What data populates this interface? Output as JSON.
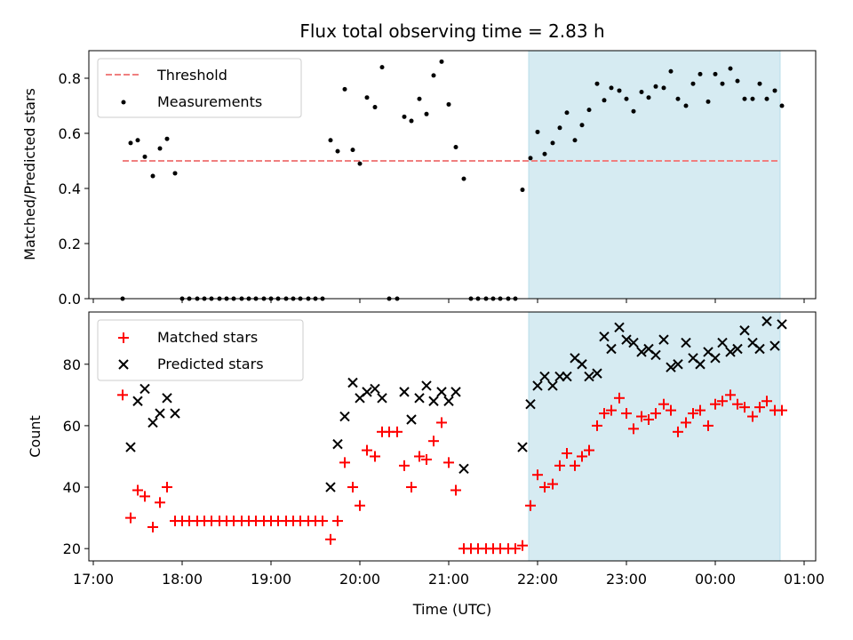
{
  "chart_data": [
    {
      "type": "scatter",
      "title": "Flux total observing time = 2.83 h",
      "xlabel": "",
      "ylabel": "Matched/Predicted stars",
      "x_unit": "hours since 17:00 UTC",
      "xlim": [
        16.95,
        25.13
      ],
      "ylim": [
        0,
        0.9
      ],
      "y_ticks": [
        0.0,
        0.2,
        0.4,
        0.6,
        0.8
      ],
      "y_tick_labels": [
        "0.0",
        "0.2",
        "0.4",
        "0.6",
        "0.8"
      ],
      "highlight_span": [
        21.9,
        24.73
      ],
      "highlight_color": "#add8e6",
      "threshold": {
        "name": "Threshold",
        "value": 0.5,
        "x_range": [
          17.33,
          24.73
        ],
        "color": "#f08080"
      },
      "legend": {
        "placement": "top-left",
        "entries": [
          "Threshold",
          "Measurements"
        ]
      },
      "series": [
        {
          "name": "Measurements",
          "marker": "dot",
          "color": "#000000",
          "points": [
            [
              17.33,
              0.0
            ],
            [
              17.42,
              0.565
            ],
            [
              17.5,
              0.575
            ],
            [
              17.58,
              0.515
            ],
            [
              17.67,
              0.445
            ],
            [
              17.75,
              0.545
            ],
            [
              17.83,
              0.58
            ],
            [
              17.92,
              0.455
            ],
            [
              18.0,
              0.0
            ],
            [
              18.08,
              0.0
            ],
            [
              18.17,
              0.0
            ],
            [
              18.25,
              0.0
            ],
            [
              18.33,
              0.0
            ],
            [
              18.42,
              0.0
            ],
            [
              18.5,
              0.0
            ],
            [
              18.58,
              0.0
            ],
            [
              18.67,
              0.0
            ],
            [
              18.75,
              0.0
            ],
            [
              18.83,
              0.0
            ],
            [
              18.92,
              0.0
            ],
            [
              19.0,
              0.0
            ],
            [
              19.08,
              0.0
            ],
            [
              19.17,
              0.0
            ],
            [
              19.25,
              0.0
            ],
            [
              19.33,
              0.0
            ],
            [
              19.42,
              0.0
            ],
            [
              19.5,
              0.0
            ],
            [
              19.58,
              0.0
            ],
            [
              19.67,
              0.575
            ],
            [
              19.75,
              0.535
            ],
            [
              19.83,
              0.76
            ],
            [
              19.92,
              0.54
            ],
            [
              20.0,
              0.49
            ],
            [
              20.08,
              0.73
            ],
            [
              20.17,
              0.695
            ],
            [
              20.25,
              0.84
            ],
            [
              20.33,
              0.0
            ],
            [
              20.42,
              0.0
            ],
            [
              20.5,
              0.66
            ],
            [
              20.58,
              0.645
            ],
            [
              20.67,
              0.725
            ],
            [
              20.75,
              0.67
            ],
            [
              20.83,
              0.81
            ],
            [
              20.92,
              0.86
            ],
            [
              21.0,
              0.705
            ],
            [
              21.08,
              0.55
            ],
            [
              21.17,
              0.435
            ],
            [
              21.25,
              0.0
            ],
            [
              21.33,
              0.0
            ],
            [
              21.42,
              0.0
            ],
            [
              21.5,
              0.0
            ],
            [
              21.58,
              0.0
            ],
            [
              21.67,
              0.0
            ],
            [
              21.75,
              0.0
            ],
            [
              21.83,
              0.395
            ],
            [
              21.92,
              0.51
            ],
            [
              22.0,
              0.605
            ],
            [
              22.08,
              0.525
            ],
            [
              22.17,
              0.565
            ],
            [
              22.25,
              0.62
            ],
            [
              22.33,
              0.675
            ],
            [
              22.42,
              0.575
            ],
            [
              22.5,
              0.63
            ],
            [
              22.58,
              0.685
            ],
            [
              22.67,
              0.78
            ],
            [
              22.75,
              0.72
            ],
            [
              22.83,
              0.765
            ],
            [
              22.92,
              0.755
            ],
            [
              23.0,
              0.725
            ],
            [
              23.08,
              0.68
            ],
            [
              23.17,
              0.75
            ],
            [
              23.25,
              0.73
            ],
            [
              23.33,
              0.77
            ],
            [
              23.42,
              0.765
            ],
            [
              23.5,
              0.825
            ],
            [
              23.58,
              0.725
            ],
            [
              23.67,
              0.7
            ],
            [
              23.75,
              0.78
            ],
            [
              23.83,
              0.815
            ],
            [
              23.92,
              0.715
            ],
            [
              24.0,
              0.815
            ],
            [
              24.08,
              0.78
            ],
            [
              24.17,
              0.835
            ],
            [
              24.25,
              0.79
            ],
            [
              24.33,
              0.725
            ],
            [
              24.42,
              0.725
            ],
            [
              24.5,
              0.78
            ],
            [
              24.58,
              0.725
            ],
            [
              24.67,
              0.755
            ],
            [
              24.75,
              0.7
            ]
          ]
        }
      ]
    },
    {
      "type": "scatter",
      "title": "",
      "xlabel": "Time (UTC)",
      "ylabel": "Count",
      "x_unit": "hours since 17:00 UTC",
      "xlim": [
        16.95,
        25.13
      ],
      "ylim": [
        16,
        97
      ],
      "y_ticks": [
        20,
        40,
        60,
        80
      ],
      "y_tick_labels": [
        "20",
        "40",
        "60",
        "80"
      ],
      "x_ticks": [
        17,
        18,
        19,
        20,
        21,
        22,
        23,
        24,
        25
      ],
      "x_tick_labels": [
        "17:00",
        "18:00",
        "19:00",
        "20:00",
        "21:00",
        "22:00",
        "23:00",
        "00:00",
        "01:00"
      ],
      "highlight_span": [
        21.9,
        24.73
      ],
      "highlight_color": "#add8e6",
      "legend": {
        "placement": "top-left",
        "entries": [
          "Matched stars",
          "Predicted stars"
        ]
      },
      "series": [
        {
          "name": "Matched stars",
          "marker": "plus",
          "color": "#ff0000",
          "points": [
            [
              17.33,
              70
            ],
            [
              17.42,
              30
            ],
            [
              17.5,
              39
            ],
            [
              17.58,
              37
            ],
            [
              17.67,
              27
            ],
            [
              17.75,
              35
            ],
            [
              17.83,
              40
            ],
            [
              17.92,
              29
            ],
            [
              18.0,
              29
            ],
            [
              18.08,
              29
            ],
            [
              18.17,
              29
            ],
            [
              18.25,
              29
            ],
            [
              18.33,
              29
            ],
            [
              18.42,
              29
            ],
            [
              18.5,
              29
            ],
            [
              18.58,
              29
            ],
            [
              18.67,
              29
            ],
            [
              18.75,
              29
            ],
            [
              18.83,
              29
            ],
            [
              18.92,
              29
            ],
            [
              19.0,
              29
            ],
            [
              19.08,
              29
            ],
            [
              19.17,
              29
            ],
            [
              19.25,
              29
            ],
            [
              19.33,
              29
            ],
            [
              19.42,
              29
            ],
            [
              19.5,
              29
            ],
            [
              19.58,
              29
            ],
            [
              19.67,
              23
            ],
            [
              19.75,
              29
            ],
            [
              19.83,
              48
            ],
            [
              19.92,
              40
            ],
            [
              20.0,
              34
            ],
            [
              20.08,
              52
            ],
            [
              20.17,
              50
            ],
            [
              20.25,
              58
            ],
            [
              20.33,
              58
            ],
            [
              20.42,
              58
            ],
            [
              20.5,
              47
            ],
            [
              20.58,
              40
            ],
            [
              20.67,
              50
            ],
            [
              20.75,
              49
            ],
            [
              20.83,
              55
            ],
            [
              20.92,
              61
            ],
            [
              21.0,
              48
            ],
            [
              21.08,
              39
            ],
            [
              21.17,
              20
            ],
            [
              21.25,
              20
            ],
            [
              21.33,
              20
            ],
            [
              21.42,
              20
            ],
            [
              21.5,
              20
            ],
            [
              21.58,
              20
            ],
            [
              21.67,
              20
            ],
            [
              21.75,
              20
            ],
            [
              21.83,
              21
            ],
            [
              21.92,
              34
            ],
            [
              22.0,
              44
            ],
            [
              22.08,
              40
            ],
            [
              22.17,
              41
            ],
            [
              22.25,
              47
            ],
            [
              22.33,
              51
            ],
            [
              22.42,
              47
            ],
            [
              22.5,
              50
            ],
            [
              22.58,
              52
            ],
            [
              22.67,
              60
            ],
            [
              22.75,
              64
            ],
            [
              22.83,
              65
            ],
            [
              22.92,
              69
            ],
            [
              23.0,
              64
            ],
            [
              23.08,
              59
            ],
            [
              23.17,
              63
            ],
            [
              23.25,
              62
            ],
            [
              23.33,
              64
            ],
            [
              23.42,
              67
            ],
            [
              23.5,
              65
            ],
            [
              23.58,
              58
            ],
            [
              23.67,
              61
            ],
            [
              23.75,
              64
            ],
            [
              23.83,
              65
            ],
            [
              23.92,
              60
            ],
            [
              24.0,
              67
            ],
            [
              24.08,
              68
            ],
            [
              24.17,
              70
            ],
            [
              24.25,
              67
            ],
            [
              24.33,
              66
            ],
            [
              24.42,
              63
            ],
            [
              24.5,
              66
            ],
            [
              24.58,
              68
            ],
            [
              24.67,
              65
            ],
            [
              24.75,
              65
            ]
          ]
        },
        {
          "name": "Predicted stars",
          "marker": "cross",
          "color": "#000000",
          "points": [
            [
              17.42,
              53
            ],
            [
              17.5,
              68
            ],
            [
              17.58,
              72
            ],
            [
              17.67,
              61
            ],
            [
              17.75,
              64
            ],
            [
              17.83,
              69
            ],
            [
              17.92,
              64
            ],
            [
              19.67,
              40
            ],
            [
              19.75,
              54
            ],
            [
              19.83,
              63
            ],
            [
              19.92,
              74
            ],
            [
              20.0,
              69
            ],
            [
              20.08,
              71
            ],
            [
              20.17,
              72
            ],
            [
              20.25,
              69
            ],
            [
              20.5,
              71
            ],
            [
              20.58,
              62
            ],
            [
              20.67,
              69
            ],
            [
              20.75,
              73
            ],
            [
              20.83,
              68
            ],
            [
              20.92,
              71
            ],
            [
              21.0,
              68
            ],
            [
              21.08,
              71
            ],
            [
              21.17,
              46
            ],
            [
              21.83,
              53
            ],
            [
              21.92,
              67
            ],
            [
              22.0,
              73
            ],
            [
              22.08,
              76
            ],
            [
              22.17,
              73
            ],
            [
              22.25,
              76
            ],
            [
              22.33,
              76
            ],
            [
              22.42,
              82
            ],
            [
              22.5,
              80
            ],
            [
              22.58,
              76
            ],
            [
              22.67,
              77
            ],
            [
              22.75,
              89
            ],
            [
              22.83,
              85
            ],
            [
              22.92,
              92
            ],
            [
              23.0,
              88
            ],
            [
              23.08,
              87
            ],
            [
              23.17,
              84
            ],
            [
              23.25,
              85
            ],
            [
              23.33,
              83
            ],
            [
              23.42,
              88
            ],
            [
              23.5,
              79
            ],
            [
              23.58,
              80
            ],
            [
              23.67,
              87
            ],
            [
              23.75,
              82
            ],
            [
              23.83,
              80
            ],
            [
              23.92,
              84
            ],
            [
              24.0,
              82
            ],
            [
              24.08,
              87
            ],
            [
              24.17,
              84
            ],
            [
              24.25,
              85
            ],
            [
              24.33,
              91
            ],
            [
              24.42,
              87
            ],
            [
              24.5,
              85
            ],
            [
              24.58,
              94
            ],
            [
              24.67,
              86
            ],
            [
              24.75,
              93
            ]
          ]
        }
      ]
    }
  ]
}
